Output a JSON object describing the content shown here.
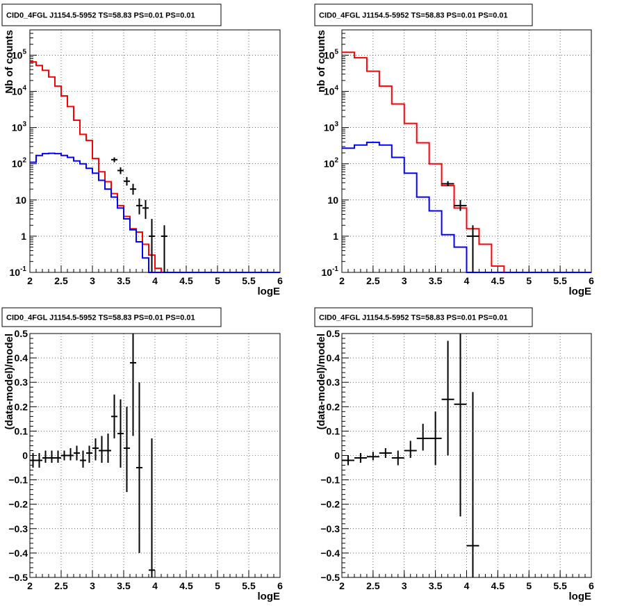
{
  "chart_data": [
    {
      "type": "line",
      "title": "CID0_4FGL J1154.5-5952 TS=58.83 PS=0.01 PS=0.01",
      "xlabel": "logE",
      "ylabel": "Nb of counts",
      "xlim": [
        2,
        6
      ],
      "ylim": [
        0.1,
        500000
      ],
      "yscale": "log",
      "x_ticks": [
        "2",
        "2.5",
        "3",
        "3.5",
        "4",
        "4.5",
        "5",
        "5.5",
        "6"
      ],
      "y_ticks": [
        "10^-1",
        "1",
        "10",
        "10^2",
        "10^3",
        "10^4",
        "10^5"
      ],
      "grid": true,
      "bin_edges": [
        2.0,
        2.1,
        2.2,
        2.3,
        2.4,
        2.5,
        2.6,
        2.7,
        2.8,
        2.9,
        3.0,
        3.1,
        3.2,
        3.3,
        3.4,
        3.5,
        3.6,
        3.7,
        3.8,
        3.9,
        4.0,
        4.1,
        4.2,
        4.3,
        4.4,
        4.5,
        4.6,
        4.7,
        4.8,
        4.9,
        5.0,
        5.1,
        5.2,
        5.3,
        5.4,
        5.5,
        5.6,
        5.7,
        5.8,
        5.9,
        6.0
      ],
      "series": [
        {
          "color": "#ff0000",
          "style": "step",
          "values": [
            65000,
            52000,
            38000,
            25000,
            14000,
            7500,
            3800,
            1600,
            650,
            440,
            140,
            60,
            32,
            15,
            7,
            3.5,
            1.6,
            1.3,
            0.6,
            0.3,
            0.13,
            0.1,
            0.1,
            0.1,
            0.1,
            0.1,
            0.1,
            0.1,
            0.1,
            0.1,
            0.1,
            0.1,
            0.1,
            0.1,
            0.1,
            0.1,
            0.1,
            0.1,
            0.1,
            0.1
          ]
        },
        {
          "color": "#0000ff",
          "style": "step",
          "values": [
            110,
            170,
            190,
            195,
            190,
            170,
            150,
            120,
            100,
            75,
            55,
            35,
            20,
            12,
            6,
            3,
            1.5,
            0.7,
            0.25,
            0.1,
            0.1,
            0.1,
            0.1,
            0.1,
            0.1,
            0.1,
            0.1,
            0.1,
            0.1,
            0.1,
            0.1,
            0.1,
            0.1,
            0.1,
            0.1,
            0.1,
            0.1,
            0.1,
            0.1,
            0.1
          ]
        },
        {
          "color": "#000000",
          "style": "errorbar",
          "points": [
            {
              "x": 3.35,
              "y": 130,
              "dx": 0.05,
              "lo": 110,
              "hi": 150
            },
            {
              "x": 3.45,
              "y": 65,
              "dx": 0.05,
              "lo": 52,
              "hi": 80
            },
            {
              "x": 3.55,
              "y": 33,
              "dx": 0.05,
              "lo": 25,
              "hi": 43
            },
            {
              "x": 3.65,
              "y": 20,
              "dx": 0.05,
              "lo": 14,
              "hi": 28
            },
            {
              "x": 3.75,
              "y": 7,
              "dx": 0.05,
              "lo": 4,
              "hi": 11
            },
            {
              "x": 3.85,
              "y": 6,
              "dx": 0.05,
              "lo": 3,
              "hi": 10
            },
            {
              "x": 3.95,
              "y": 1,
              "dx": 0.05,
              "lo": 0.1,
              "hi": 3
            },
            {
              "x": 4.15,
              "y": 1,
              "dx": 0.05,
              "lo": 0.1,
              "hi": 2
            }
          ]
        }
      ]
    },
    {
      "type": "line",
      "title": "CID0_4FGL J1154.5-5952 TS=58.83 PS=0.01 PS=0.01",
      "xlabel": "logE",
      "ylabel": "nb of counts",
      "xlim": [
        2,
        6
      ],
      "ylim": [
        0.1,
        500000
      ],
      "yscale": "log",
      "x_ticks": [
        "2",
        "2.5",
        "3",
        "3.5",
        "4",
        "4.5",
        "5",
        "5.5",
        "6"
      ],
      "y_ticks": [
        "10^-1",
        "1",
        "10",
        "10^2",
        "10^3",
        "10^4",
        "10^5"
      ],
      "grid": true,
      "bin_edges": [
        2.0,
        2.2,
        2.4,
        2.6,
        2.8,
        3.0,
        3.2,
        3.4,
        3.6,
        3.8,
        4.0,
        4.2,
        4.4,
        4.6,
        4.8,
        5.0,
        5.2,
        5.4,
        5.6,
        5.8,
        6.0
      ],
      "series": [
        {
          "color": "#ff0000",
          "style": "step",
          "values": [
            120000,
            85000,
            36000,
            14000,
            4500,
            1300,
            380,
            100,
            25,
            6,
            1.6,
            0.6,
            0.15,
            0.1,
            0.1,
            0.1,
            0.1,
            0.1,
            0.1,
            0.1
          ]
        },
        {
          "color": "#0000ff",
          "style": "step",
          "values": [
            270,
            330,
            390,
            330,
            150,
            55,
            12,
            5,
            1.1,
            0.5,
            0.1,
            0.1,
            0.1,
            0.1,
            0.1,
            0.1,
            0.1,
            0.1,
            0.1,
            0.1
          ]
        },
        {
          "color": "#000000",
          "style": "errorbar",
          "points": [
            {
              "x": 3.7,
              "y": 28,
              "dx": 0.1,
              "lo": 24,
              "hi": 33
            },
            {
              "x": 3.9,
              "y": 7,
              "dx": 0.1,
              "lo": 5,
              "hi": 10
            },
            {
              "x": 4.1,
              "y": 1,
              "dx": 0.1,
              "lo": 0.1,
              "hi": 2
            }
          ]
        }
      ]
    },
    {
      "type": "scatter",
      "title": "CID0_4FGL J1154.5-5952 TS=58.83 PS=0.01 PS=0.01",
      "xlabel": "logE",
      "ylabel": "(data-model)/model",
      "xlim": [
        2,
        6
      ],
      "ylim": [
        -0.5,
        0.5
      ],
      "x_ticks": [
        "2",
        "2.5",
        "3",
        "3.5",
        "4",
        "4.5",
        "5",
        "5.5",
        "6"
      ],
      "y_ticks": [
        "−0.5",
        "−0.4",
        "−0.3",
        "−0.2",
        "−0.1",
        "0",
        "0.1",
        "0.2",
        "0.3",
        "0.4",
        "0.5"
      ],
      "grid": true,
      "series": [
        {
          "color": "#000000",
          "style": "errorbar",
          "points": [
            {
              "x": 2.05,
              "y": -0.02,
              "dx": 0.05,
              "lo": -0.05,
              "hi": 0.01
            },
            {
              "x": 2.15,
              "y": -0.02,
              "dx": 0.05,
              "lo": -0.05,
              "hi": 0.01
            },
            {
              "x": 2.25,
              "y": -0.01,
              "dx": 0.05,
              "lo": -0.03,
              "hi": 0.02
            },
            {
              "x": 2.35,
              "y": -0.01,
              "dx": 0.05,
              "lo": -0.03,
              "hi": 0.02
            },
            {
              "x": 2.45,
              "y": -0.01,
              "dx": 0.05,
              "lo": -0.03,
              "hi": 0.02
            },
            {
              "x": 2.55,
              "y": 0.0,
              "dx": 0.05,
              "lo": -0.02,
              "hi": 0.02
            },
            {
              "x": 2.65,
              "y": 0.0,
              "dx": 0.05,
              "lo": -0.02,
              "hi": 0.03
            },
            {
              "x": 2.75,
              "y": 0.01,
              "dx": 0.05,
              "lo": -0.02,
              "hi": 0.04
            },
            {
              "x": 2.85,
              "y": -0.02,
              "dx": 0.05,
              "lo": -0.05,
              "hi": 0.02
            },
            {
              "x": 2.95,
              "y": 0.01,
              "dx": 0.05,
              "lo": -0.03,
              "hi": 0.04
            },
            {
              "x": 3.05,
              "y": 0.03,
              "dx": 0.05,
              "lo": -0.02,
              "hi": 0.07
            },
            {
              "x": 3.15,
              "y": 0.02,
              "dx": 0.05,
              "lo": -0.03,
              "hi": 0.08
            },
            {
              "x": 3.25,
              "y": 0.02,
              "dx": 0.05,
              "lo": -0.03,
              "hi": 0.09
            },
            {
              "x": 3.35,
              "y": 0.16,
              "dx": 0.05,
              "lo": 0.07,
              "hi": 0.25
            },
            {
              "x": 3.45,
              "y": 0.09,
              "dx": 0.05,
              "lo": -0.05,
              "hi": 0.23
            },
            {
              "x": 3.55,
              "y": 0.03,
              "dx": 0.05,
              "lo": -0.15,
              "hi": 0.2
            },
            {
              "x": 3.65,
              "y": 0.38,
              "dx": 0.05,
              "lo": 0.08,
              "hi": 0.5
            },
            {
              "x": 3.75,
              "y": -0.05,
              "dx": 0.05,
              "lo": -0.4,
              "hi": 0.3
            },
            {
              "x": 3.95,
              "y": -0.47,
              "dx": 0.05,
              "lo": -0.5,
              "hi": 0.07
            }
          ]
        }
      ]
    },
    {
      "type": "scatter",
      "title": "CID0_4FGL J1154.5-5952 TS=58.83 PS=0.01 PS=0.01",
      "xlabel": "logE",
      "ylabel": "(data-model)/model",
      "xlim": [
        2,
        6
      ],
      "ylim": [
        -0.5,
        0.5
      ],
      "x_ticks": [
        "2",
        "2.5",
        "3",
        "3.5",
        "4",
        "4.5",
        "5",
        "5.5",
        "6"
      ],
      "y_ticks": [
        "−0.5",
        "−0.4",
        "−0.3",
        "−0.2",
        "−0.1",
        "0",
        "0.1",
        "0.2",
        "0.3",
        "0.4",
        "0.5"
      ],
      "grid": true,
      "series": [
        {
          "color": "#000000",
          "style": "errorbar",
          "points": [
            {
              "x": 2.1,
              "y": -0.02,
              "dx": 0.1,
              "lo": -0.04,
              "hi": 0.0
            },
            {
              "x": 2.3,
              "y": -0.01,
              "dx": 0.1,
              "lo": -0.03,
              "hi": 0.01
            },
            {
              "x": 2.5,
              "y": -0.005,
              "dx": 0.1,
              "lo": -0.02,
              "hi": 0.015
            },
            {
              "x": 2.7,
              "y": 0.01,
              "dx": 0.1,
              "lo": -0.01,
              "hi": 0.03
            },
            {
              "x": 2.9,
              "y": -0.01,
              "dx": 0.1,
              "lo": -0.04,
              "hi": 0.02
            },
            {
              "x": 3.1,
              "y": 0.02,
              "dx": 0.1,
              "lo": -0.01,
              "hi": 0.06
            },
            {
              "x": 3.3,
              "y": 0.07,
              "dx": 0.1,
              "lo": 0.02,
              "hi": 0.13
            },
            {
              "x": 3.5,
              "y": 0.07,
              "dx": 0.1,
              "lo": -0.04,
              "hi": 0.18
            },
            {
              "x": 3.7,
              "y": 0.23,
              "dx": 0.1,
              "lo": 0.0,
              "hi": 0.47
            },
            {
              "x": 3.9,
              "y": 0.21,
              "dx": 0.1,
              "lo": -0.25,
              "hi": 0.5
            },
            {
              "x": 4.1,
              "y": -0.37,
              "dx": 0.1,
              "lo": -0.5,
              "hi": 0.26
            }
          ]
        }
      ]
    }
  ]
}
